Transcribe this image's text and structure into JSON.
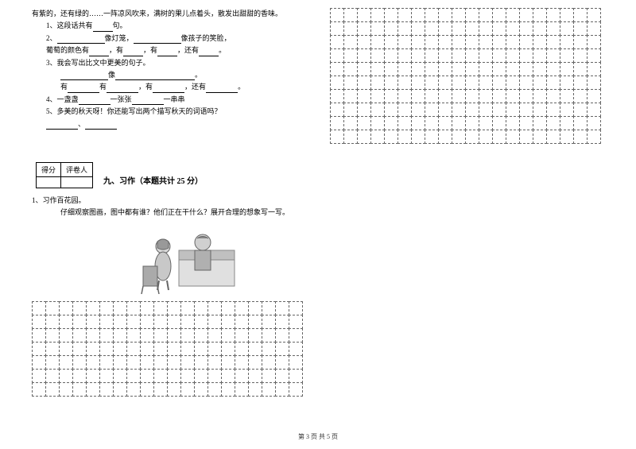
{
  "leftColumn": {
    "intro": "有紫的，还有绿的……一阵凉风吹来，满树的果儿点着头，散发出甜甜的香味。",
    "q1": "1、这段话共有____句。",
    "q2_part1": "2、____________像灯笼，____________像孩子的笑脸，",
    "q2_part2": "葡萄的颜色有______，有______，有______，还有______。",
    "q3": "3、我会写出比文中更美的句子。",
    "q3_blank1_prefix": "",
    "q3_blank1_suffix": "像",
    "q3_blank2": "。",
    "q3_line3_prefix": "有",
    "q3_line3_mid": "有",
    "q3_line3_mid2": "，有",
    "q3_line3_end": "，还有",
    "q3_line3_period": "。",
    "q4": "4、一盏盏________一张张________一串串",
    "q5": "5、多美的秋天呀！你还能写出两个描写秋天的词语吗？",
    "scoreHeader1": "得分",
    "scoreHeader2": "评卷人",
    "sectionTitle": "九、习作（本题共计 25 分）",
    "writingQ": "1、习作百花园。",
    "writingDesc": "仔细观察图画，图中都有谁？他们正在干什么？展开合理的想象写一写。"
  },
  "grid": {
    "leftRows": 7,
    "leftCols": 20,
    "rightRows": 10,
    "rightCols": 20,
    "cellSize": 18,
    "borderColor": "#666666"
  },
  "footer": "第 3 页 共 5 页",
  "colors": {
    "text": "#000000",
    "background": "#ffffff",
    "gridBorder": "#666666"
  },
  "illustration": {
    "description": "girl-and-boy-in-bed",
    "girlColor": "#888888",
    "boyColor": "#999999",
    "bedColor": "#aaaaaa"
  }
}
